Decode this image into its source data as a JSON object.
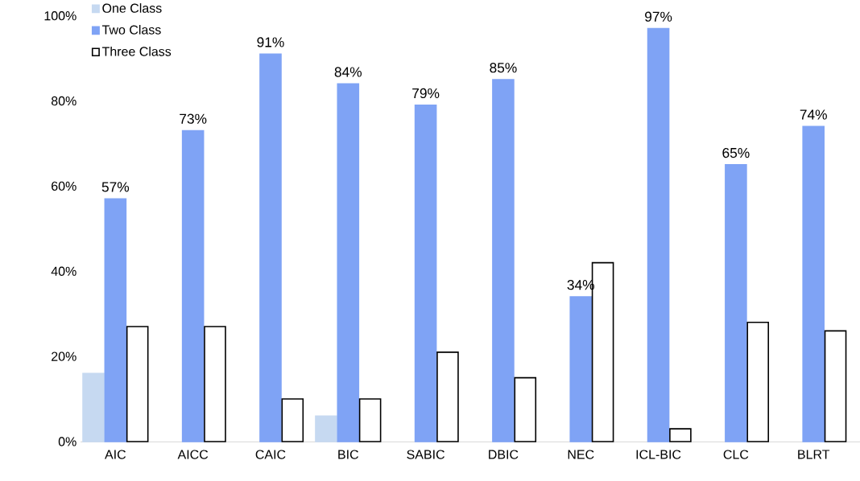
{
  "chart_data": {
    "type": "bar",
    "categories": [
      "AIC",
      "AICC",
      "CAIC",
      "BIC",
      "SABIC",
      "DBIC",
      "NEC",
      "ICL-BIC",
      "CLC",
      "BLRT"
    ],
    "series": [
      {
        "name": "One Class",
        "color": "#c6d9f1",
        "values": [
          16,
          null,
          null,
          6,
          null,
          null,
          null,
          null,
          null,
          null
        ]
      },
      {
        "name": "Two Class",
        "color": "#7fa3f5",
        "values": [
          57,
          73,
          91,
          84,
          79,
          85,
          34,
          97,
          65,
          74
        ],
        "value_labels": [
          "57%",
          "73%",
          "91%",
          "84%",
          "79%",
          "85%",
          "34%",
          "97%",
          "65%",
          "74%"
        ]
      },
      {
        "name": "Three Class",
        "color": "#ffffff",
        "values": [
          27,
          27,
          10,
          10,
          21,
          15,
          42,
          3,
          28,
          26
        ]
      }
    ],
    "ylim": [
      0,
      100
    ],
    "yticks": [
      {
        "value": 0,
        "label": "0%"
      },
      {
        "value": 20,
        "label": "20%"
      },
      {
        "value": 40,
        "label": "40%"
      },
      {
        "value": 60,
        "label": "60%"
      },
      {
        "value": 80,
        "label": "80%"
      },
      {
        "value": 100,
        "label": "100%"
      }
    ],
    "legend": "top left"
  }
}
